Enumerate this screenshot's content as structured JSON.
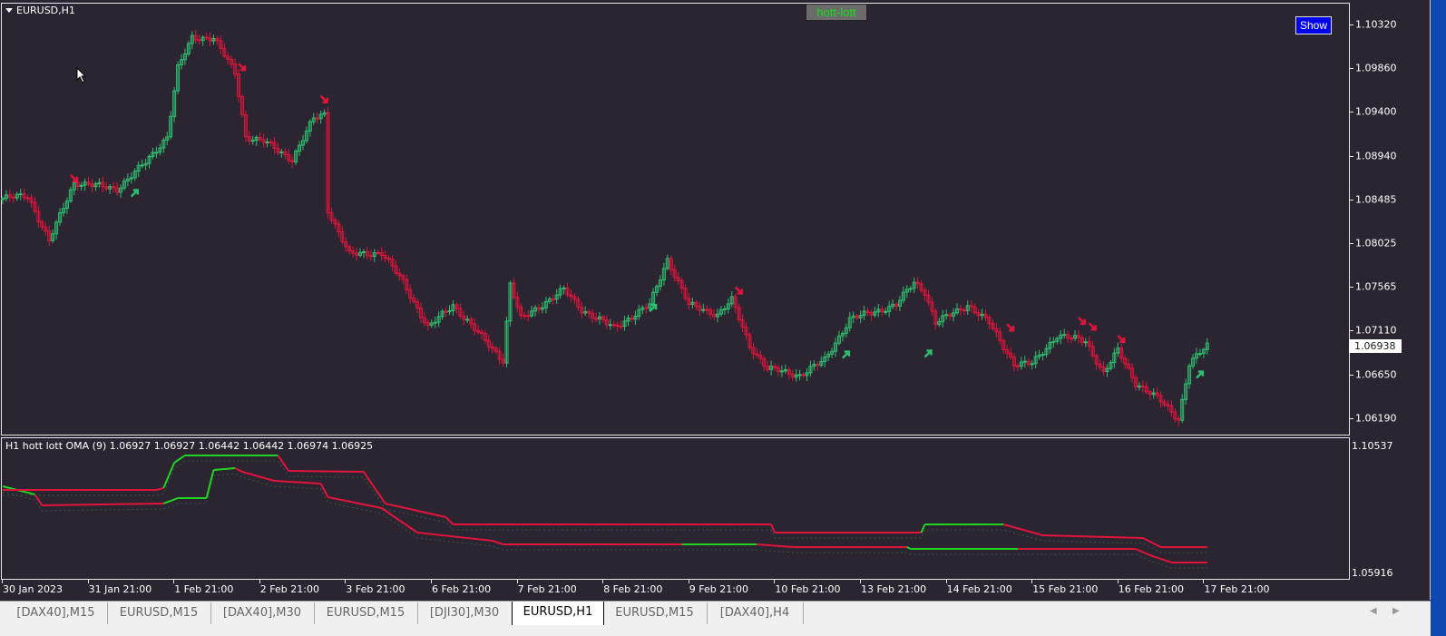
{
  "window": {
    "symbol_label": "EURUSD,H1"
  },
  "badge": {
    "label": "hott-lott"
  },
  "show_button": {
    "label": "Show"
  },
  "colors": {
    "background": "#2a2530",
    "bull": "#2fbf71",
    "bear": "#e0143c",
    "line_green": "#22d322",
    "line_red": "#e0143c"
  },
  "price_axis": {
    "labels": [
      "1.10320",
      "1.09860",
      "1.09400",
      "1.08940",
      "1.08485",
      "1.08025",
      "1.07565",
      "1.07110",
      "1.06650",
      "1.06190"
    ],
    "current_price": "1.06938"
  },
  "indicator": {
    "label": "H1 hott lott OMA (9) 1.06927 1.06927 1.06442 1.06442 1.06974 1.06925",
    "axis_max": "1.10537",
    "axis_min": "1.05916"
  },
  "time_axis": {
    "labels": [
      "30 Jan 2023",
      "31 Jan 21:00",
      "1 Feb 21:00",
      "2 Feb 21:00",
      "3 Feb 21:00",
      "6 Feb 21:00",
      "7 Feb 21:00",
      "8 Feb 21:00",
      "9 Feb 21:00",
      "10 Feb 21:00",
      "13 Feb 21:00",
      "14 Feb 21:00",
      "15 Feb 21:00",
      "16 Feb 21:00",
      "17 Feb 21:00"
    ]
  },
  "tabs": [
    {
      "label": "[DAX40],M15",
      "active": false
    },
    {
      "label": "EURUSD,M15",
      "active": false
    },
    {
      "label": "[DAX40],M30",
      "active": false
    },
    {
      "label": "EURUSD,M15",
      "active": false
    },
    {
      "label": "[DJI30],M30",
      "active": false
    },
    {
      "label": "EURUSD,H1",
      "active": true
    },
    {
      "label": "EURUSD,M15",
      "active": false
    },
    {
      "label": "[DAX40],H4",
      "active": false
    }
  ],
  "chart_data": {
    "type": "candlestick",
    "ylim": [
      1.0597,
      1.1042
    ],
    "price_path_bar_close": [
      [
        0,
        1.0849
      ],
      [
        7,
        1.0852
      ],
      [
        13,
        1.0804
      ],
      [
        20,
        1.0866
      ],
      [
        32,
        1.0859
      ],
      [
        40,
        1.0887
      ],
      [
        46,
        1.0914
      ],
      [
        49,
        1.0986
      ],
      [
        53,
        1.1018
      ],
      [
        59,
        1.1018
      ],
      [
        65,
        1.0981
      ],
      [
        68,
        1.0914
      ],
      [
        73,
        1.0909
      ],
      [
        81,
        1.089
      ],
      [
        87,
        1.0933
      ],
      [
        90,
        1.0938
      ],
      [
        91,
        1.0837
      ],
      [
        97,
        1.079
      ],
      [
        106,
        1.0792
      ],
      [
        112,
        1.0761
      ],
      [
        119,
        1.0713
      ],
      [
        126,
        1.0737
      ],
      [
        134,
        1.0703
      ],
      [
        140,
        1.0679
      ],
      [
        142,
        1.0759
      ],
      [
        145,
        1.0722
      ],
      [
        157,
        1.0753
      ],
      [
        162,
        1.0732
      ],
      [
        171,
        1.0713
      ],
      [
        181,
        1.0737
      ],
      [
        186,
        1.0785
      ],
      [
        192,
        1.0737
      ],
      [
        200,
        1.0727
      ],
      [
        204,
        1.0742
      ],
      [
        209,
        1.0694
      ],
      [
        214,
        1.067
      ],
      [
        223,
        1.0663
      ],
      [
        230,
        1.0679
      ],
      [
        237,
        1.0722
      ],
      [
        250,
        1.0737
      ],
      [
        255,
        1.0761
      ],
      [
        258,
        1.0751
      ],
      [
        261,
        1.0718
      ],
      [
        270,
        1.0737
      ],
      [
        276,
        1.0718
      ],
      [
        283,
        1.0675
      ],
      [
        288,
        1.0675
      ],
      [
        295,
        1.0705
      ],
      [
        303,
        1.0699
      ],
      [
        308,
        1.0665
      ],
      [
        312,
        1.0689
      ],
      [
        317,
        1.0655
      ],
      [
        324,
        1.0636
      ],
      [
        329,
        1.0617
      ],
      [
        332,
        1.0675
      ],
      [
        337,
        1.0694
      ]
    ],
    "signals": [
      {
        "type": "sell",
        "bar": 20,
        "price": 1.087
      },
      {
        "type": "sell",
        "bar": 67,
        "price": 1.0987
      },
      {
        "type": "sell",
        "bar": 90,
        "price": 1.0953
      },
      {
        "type": "sell",
        "bar": 206,
        "price": 1.0752
      },
      {
        "type": "sell",
        "bar": 282,
        "price": 1.0713
      },
      {
        "type": "sell",
        "bar": 302,
        "price": 1.072
      },
      {
        "type": "sell",
        "bar": 305,
        "price": 1.0714
      },
      {
        "type": "sell",
        "bar": 313,
        "price": 1.0701
      },
      {
        "type": "buy",
        "bar": 37,
        "price": 1.0855
      },
      {
        "type": "buy",
        "bar": 182,
        "price": 1.0734
      },
      {
        "type": "buy",
        "bar": 236,
        "price": 1.0685
      },
      {
        "type": "buy",
        "bar": 259,
        "price": 1.0686
      },
      {
        "type": "buy",
        "bar": 335,
        "price": 1.0664
      }
    ],
    "indicator_ylim": [
      1.05916,
      1.10537
    ],
    "indicator_lines": [
      {
        "points": [
          [
            0,
            1.09062,
            "green"
          ],
          [
            9,
            1.08767,
            "red"
          ],
          [
            11,
            1.08374,
            "red"
          ],
          [
            45,
            1.0844,
            "green"
          ],
          [
            49,
            1.08636,
            "green"
          ],
          [
            57,
            1.08636,
            "green"
          ],
          [
            59,
            1.09652,
            "green"
          ],
          [
            65,
            1.09718,
            "red"
          ],
          [
            67,
            1.09587,
            "red"
          ],
          [
            76,
            1.09259,
            "red"
          ],
          [
            89,
            1.09161,
            "red"
          ],
          [
            91,
            1.08669,
            "red"
          ],
          [
            106,
            1.08276,
            "red"
          ],
          [
            116,
            1.07391,
            "red"
          ],
          [
            137,
            1.07096,
            "red"
          ],
          [
            140,
            1.06965,
            "red"
          ],
          [
            190,
            1.06965,
            "green"
          ],
          [
            211,
            1.06965,
            "red"
          ],
          [
            221,
            1.06867,
            "red"
          ],
          [
            253,
            1.06867,
            "green"
          ],
          [
            254,
            1.06801,
            "green"
          ],
          [
            284,
            1.06801,
            "red"
          ],
          [
            317,
            1.06801,
            "red"
          ],
          [
            321,
            1.06572,
            "red"
          ],
          [
            327,
            1.0631,
            "red"
          ],
          [
            337,
            1.0631,
            "red"
          ]
        ]
      },
      {
        "points": [
          [
            0,
            1.08931,
            "red"
          ],
          [
            43,
            1.08931,
            "red"
          ],
          [
            45,
            1.08997,
            "green"
          ],
          [
            48,
            1.09914,
            "green"
          ],
          [
            51,
            1.10177,
            "green"
          ],
          [
            77,
            1.10177,
            "red"
          ],
          [
            80,
            1.09619,
            "red"
          ],
          [
            101,
            1.09587,
            "red"
          ],
          [
            107,
            1.0844,
            "red"
          ],
          [
            124,
            1.07948,
            "red"
          ],
          [
            126,
            1.07686,
            "red"
          ],
          [
            215,
            1.07686,
            "red"
          ],
          [
            216,
            1.07391,
            "red"
          ],
          [
            257,
            1.07391,
            "green"
          ],
          [
            258,
            1.07686,
            "green"
          ],
          [
            280,
            1.07686,
            "red"
          ],
          [
            291,
            1.07293,
            "red"
          ],
          [
            319,
            1.07194,
            "red"
          ],
          [
            324,
            1.06867,
            "red"
          ],
          [
            337,
            1.06867,
            "red"
          ]
        ]
      }
    ]
  }
}
